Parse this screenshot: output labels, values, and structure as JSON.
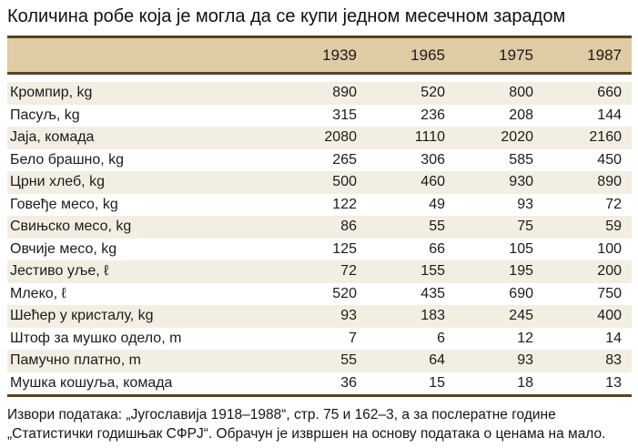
{
  "title": "Количина робе која је могла да се купи једном месечном зарадом",
  "chart_data": {
    "type": "table",
    "title": "Количина робе која је могла да се купи једном месечном зарадом",
    "columns": [
      "",
      "1939",
      "1965",
      "1975",
      "1987"
    ],
    "rows": [
      {
        "label": "Кромпир, kg",
        "values": [
          890,
          520,
          800,
          660
        ]
      },
      {
        "label": "Пасуљ, kg",
        "values": [
          315,
          236,
          208,
          144
        ]
      },
      {
        "label": "Јаја, комада",
        "values": [
          2080,
          1110,
          2020,
          2160
        ]
      },
      {
        "label": "Бело брашно, kg",
        "values": [
          265,
          306,
          585,
          450
        ]
      },
      {
        "label": "Црни хлеб, kg",
        "values": [
          500,
          460,
          930,
          890
        ]
      },
      {
        "label": "Говеђе месо, kg",
        "values": [
          122,
          49,
          93,
          72
        ]
      },
      {
        "label": "Свињско месо, kg",
        "values": [
          86,
          55,
          75,
          59
        ]
      },
      {
        "label": "Овчије месо, kg",
        "values": [
          125,
          66,
          105,
          100
        ]
      },
      {
        "label": "Јестиво уље, ℓ",
        "values": [
          72,
          155,
          195,
          200
        ]
      },
      {
        "label": "Млеко, ℓ",
        "values": [
          520,
          435,
          690,
          750
        ]
      },
      {
        "label": "Шећер у кристалу, kg",
        "values": [
          93,
          183,
          245,
          400
        ]
      },
      {
        "label": "Штоф за мушко одело, m",
        "values": [
          7,
          6,
          12,
          14
        ]
      },
      {
        "label": "Памучно платно, m",
        "values": [
          55,
          64,
          93,
          83
        ]
      },
      {
        "label": "Мушка кошуља, комада",
        "values": [
          36,
          15,
          18,
          13
        ]
      }
    ]
  },
  "footer": {
    "line1": "Извори података: „Југославија 1918–1988“, стр. 75 и 162–3, а за послератне године",
    "line2": "„Статистички годишњак СФРЈ“. Обрачун је извршен на основу података о ценама на мало."
  },
  "colors": {
    "header_bg": "#dfcba4",
    "stripe_bg": "#f3eee2",
    "border_brown": "#5a4120",
    "text": "#1b1b1b"
  }
}
